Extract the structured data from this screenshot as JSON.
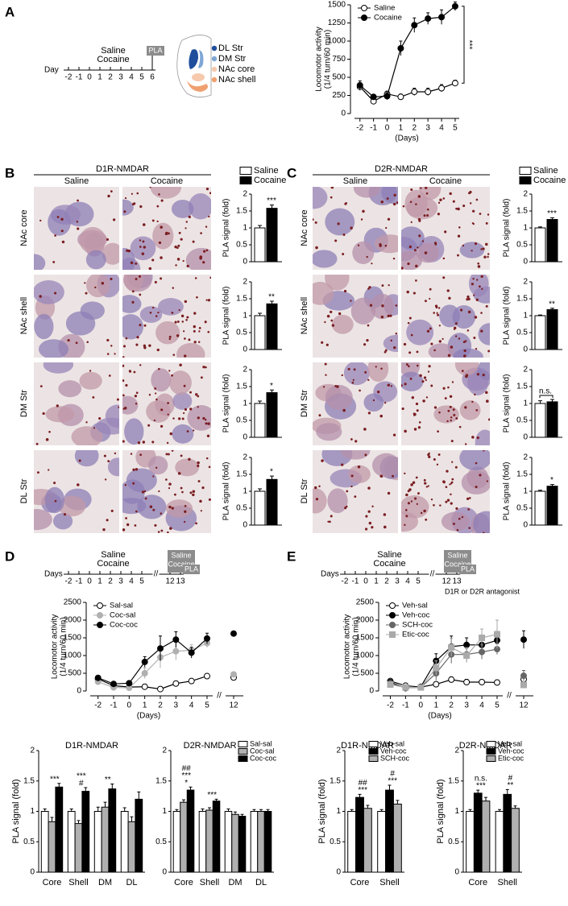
{
  "panel_labels": [
    "A",
    "B",
    "C",
    "D",
    "E"
  ],
  "timelines": [
    {
      "label": "Day",
      "ticks": [
        -2,
        -1,
        0,
        1,
        2,
        3,
        4,
        5,
        6
      ],
      "treatment": [
        "Saline",
        "Cocaine"
      ],
      "end": "PLA"
    },
    {
      "label": "Days",
      "ticks": [
        -2,
        -1,
        0,
        1,
        2,
        3,
        4,
        5,
        12,
        13
      ],
      "treatment": [
        "Saline",
        "Cocaine"
      ],
      "challenge": [
        "Saline",
        "Cocaine"
      ],
      "end": "PLA"
    },
    {
      "label": "Days",
      "ticks": [
        -2,
        -1,
        0,
        1,
        2,
        3,
        4,
        5,
        12,
        13
      ],
      "treatment": [
        "Saline",
        "Cocaine"
      ],
      "challenge": [
        "Saline",
        "Cocaine"
      ],
      "end": "PLA",
      "note": "D1R or D2R antagonist"
    }
  ],
  "brain_regions": [
    {
      "label": "DL Str",
      "color": "#1f4e9c"
    },
    {
      "label": "DM Str",
      "color": "#7fa7d6"
    },
    {
      "label": "NAc core",
      "color": "#f6c9ad"
    },
    {
      "label": "NAc shell",
      "color": "#f0a070"
    }
  ],
  "chart_data": [
    {
      "type": "line",
      "x": [
        -2,
        -1,
        0,
        1,
        2,
        3,
        4,
        5
      ],
      "xlim": [
        -2.4,
        5.3
      ],
      "xticks": [
        -2,
        -1,
        0,
        1,
        2,
        3,
        4,
        5
      ],
      "ylim": [
        0,
        1500
      ],
      "yticks": [
        0,
        250,
        500,
        750,
        1000,
        1250,
        1500
      ],
      "ylabel": [
        "Locomotor activity",
        "(1/4 turn/60 min)"
      ],
      "xlabel": "(Days)",
      "legend": "top-left",
      "annotation": "***",
      "series": [
        {
          "name": "Saline",
          "color": "#ffffff",
          "marker": "circle",
          "values": [
            370,
            170,
            270,
            230,
            300,
            300,
            350,
            420
          ],
          "errors": [
            50,
            30,
            40,
            40,
            50,
            50,
            50,
            40
          ]
        },
        {
          "name": "Cocaine",
          "color": "#000000",
          "marker": "circle",
          "values": [
            390,
            230,
            240,
            900,
            1220,
            1310,
            1330,
            1480
          ],
          "errors": [
            60,
            30,
            50,
            100,
            100,
            80,
            100,
            60
          ]
        }
      ]
    },
    {
      "type": "facet-bar",
      "title": "D1R-NMDAR",
      "categories": [
        "NAc core",
        "NAc shell",
        "DM Str",
        "DL Str"
      ],
      "ylim": [
        0,
        2
      ],
      "yticks": [
        0,
        0.5,
        1,
        1.5,
        2
      ],
      "ylabel": "PLA signal (fold)",
      "legend": "top-right",
      "annotations": [
        "***",
        "**",
        "*",
        "*"
      ],
      "series": [
        {
          "name": "Saline",
          "color": "#ffffff",
          "values": [
            1,
            1,
            1,
            1
          ],
          "errors": [
            0.07,
            0.07,
            0.07,
            0.07
          ]
        },
        {
          "name": "Cocaine",
          "color": "#000000",
          "values": [
            1.58,
            1.35,
            1.32,
            1.35
          ],
          "errors": [
            0.1,
            0.08,
            0.08,
            0.1
          ]
        }
      ]
    },
    {
      "type": "facet-bar",
      "title": "D2R-NMDAR",
      "categories": [
        "NAc core",
        "NAc shell",
        "DM Str",
        "DL Str"
      ],
      "ylim": [
        0,
        2
      ],
      "yticks": [
        0,
        0.5,
        1,
        1.5,
        2
      ],
      "ylabel": "PLA signal (fold)",
      "legend": "top-right",
      "annotations": [
        "***",
        "**",
        "n.s.",
        "*"
      ],
      "series": [
        {
          "name": "Saline",
          "color": "#ffffff",
          "values": [
            1,
            1,
            1,
            1
          ],
          "errors": [
            0.03,
            0.02,
            0.08,
            0.03
          ]
        },
        {
          "name": "Cocaine",
          "color": "#000000",
          "values": [
            1.25,
            1.18,
            1.05,
            1.15
          ],
          "errors": [
            0.05,
            0.04,
            0.07,
            0.05
          ]
        }
      ]
    },
    {
      "type": "line",
      "x": [
        -2,
        -1,
        0,
        1,
        2,
        3,
        4,
        5,
        12
      ],
      "xlim": [
        -2.5,
        12.5
      ],
      "xticks": [
        -2,
        -1,
        0,
        1,
        2,
        3,
        4,
        5,
        12
      ],
      "axis_break": true,
      "ylim": [
        0,
        2500
      ],
      "yticks": [
        0,
        500,
        1000,
        1500,
        2000,
        2500
      ],
      "ylabel": [
        "Locomotor activity",
        "(1/4 turn/60 min)"
      ],
      "xlabel": "(Days)",
      "legend": "top-left",
      "series": [
        {
          "name": "Sal-sal",
          "color": "#ffffff",
          "marker": "circle",
          "values": [
            340,
            150,
            110,
            120,
            55,
            210,
            280,
            420,
            380
          ],
          "errors": [
            60,
            40,
            20,
            20,
            15,
            60,
            70,
            70,
            60
          ]
        },
        {
          "name": "Coc-sal",
          "color": "#b0b0b0",
          "marker": "circle",
          "values": [
            260,
            100,
            90,
            500,
            950,
            1120,
            1150,
            1350,
            470
          ],
          "errors": [
            50,
            30,
            30,
            150,
            300,
            250,
            150,
            120,
            60
          ]
        },
        {
          "name": "Coc-coc",
          "color": "#000000",
          "marker": "circle",
          "values": [
            370,
            200,
            220,
            820,
            1200,
            1450,
            1080,
            1480,
            1620
          ],
          "errors": [
            60,
            40,
            40,
            150,
            350,
            220,
            150,
            150,
            60
          ]
        }
      ]
    },
    {
      "type": "group-bar",
      "title": "D1R-NMDAR",
      "categories": [
        "Core",
        "Shell",
        "DM",
        "DL"
      ],
      "ylim": [
        0,
        2
      ],
      "yticks": [
        0,
        0.5,
        1,
        1.5,
        2
      ],
      "ylabel": "PLA signal (fold)",
      "annotations": [
        [
          "***"
        ],
        [
          "#",
          "***"
        ],
        [
          "**"
        ],
        []
      ],
      "series": [
        {
          "color": "#ffffff",
          "values": [
            1,
            1,
            1,
            1
          ],
          "errors": [
            0.04,
            0.04,
            0.07,
            0.06
          ]
        },
        {
          "color": "#b0b0b0",
          "values": [
            0.83,
            0.8,
            1.07,
            0.83
          ],
          "errors": [
            0.07,
            0.05,
            0.08,
            0.08
          ]
        },
        {
          "color": "#000000",
          "values": [
            1.4,
            1.33,
            1.37,
            1.2
          ],
          "errors": [
            0.06,
            0.06,
            0.08,
            0.12
          ]
        }
      ]
    },
    {
      "type": "group-bar",
      "title": "D2R-NMDAR",
      "categories": [
        "Core",
        "Shell",
        "DM",
        "DL"
      ],
      "ylim": [
        0,
        2
      ],
      "yticks": [
        0,
        0.5,
        1,
        1.5,
        2
      ],
      "legend": "top-right",
      "annotations": [
        [
          "*",
          "***",
          "##"
        ],
        [
          "***"
        ],
        [],
        []
      ],
      "series": [
        {
          "name": "Sal-sal",
          "color": "#ffffff",
          "values": [
            1,
            1,
            1,
            1
          ],
          "errors": [
            0.03,
            0.04,
            0.04,
            0.03
          ]
        },
        {
          "name": "Coc-sal",
          "color": "#b0b0b0",
          "values": [
            1.15,
            1.02,
            0.95,
            1.0
          ],
          "errors": [
            0.04,
            0.04,
            0.04,
            0.03
          ]
        },
        {
          "name": "Coc-coc",
          "color": "#000000",
          "values": [
            1.35,
            1.17,
            0.92,
            1.0
          ],
          "errors": [
            0.05,
            0.03,
            0.03,
            0.03
          ]
        }
      ]
    },
    {
      "type": "line",
      "x": [
        -2,
        -1,
        0,
        1,
        2,
        3,
        4,
        5,
        12
      ],
      "xlim": [
        -2.5,
        12.5
      ],
      "xticks": [
        -2,
        -1,
        0,
        1,
        2,
        3,
        4,
        5,
        12
      ],
      "axis_break": true,
      "ylim": [
        0,
        2500
      ],
      "yticks": [
        0,
        500,
        1000,
        1500,
        2000,
        2500
      ],
      "ylabel": [
        "Locomotor activity",
        "(1/4 turn/60 min)"
      ],
      "xlabel": "(Days)",
      "legend": "top-left",
      "series": [
        {
          "name": "Veh-sal",
          "color": "#ffffff",
          "marker": "circle",
          "values": [
            280,
            150,
            110,
            190,
            320,
            250,
            250,
            240,
            330
          ],
          "errors": [
            60,
            40,
            30,
            50,
            80,
            80,
            70,
            70,
            80
          ]
        },
        {
          "name": "Veh-coc",
          "color": "#000000",
          "marker": "circle",
          "values": [
            250,
            80,
            120,
            850,
            1250,
            1300,
            1300,
            1430,
            1450
          ],
          "errors": [
            50,
            30,
            30,
            200,
            300,
            200,
            200,
            250,
            250
          ]
        },
        {
          "name": "SCH-coc",
          "color": "#666666",
          "marker": "circle",
          "values": [
            220,
            90,
            100,
            500,
            1030,
            1030,
            1100,
            1180,
            430
          ],
          "errors": [
            50,
            30,
            30,
            200,
            250,
            200,
            200,
            150,
            150
          ]
        },
        {
          "name": "Etic-coc",
          "color": "#aaaaaa",
          "marker": "square",
          "values": [
            180,
            100,
            100,
            650,
            1230,
            1000,
            1500,
            1600,
            170
          ],
          "errors": [
            40,
            30,
            30,
            200,
            250,
            200,
            250,
            400,
            60
          ]
        }
      ]
    },
    {
      "type": "group-bar",
      "title": "D1R-NMDAR",
      "categories": [
        "Core",
        "Shell"
      ],
      "ylim": [
        0,
        2
      ],
      "yticks": [
        0,
        0.5,
        1,
        1.5,
        2
      ],
      "ylabel": "PLA signal (fold)",
      "legend": "top-right",
      "annotations": [
        [
          "***",
          "##"
        ],
        [
          "***",
          "#"
        ]
      ],
      "series": [
        {
          "name": "Veh-sal",
          "color": "#ffffff",
          "values": [
            1,
            1
          ],
          "errors": [
            0.03,
            0.03
          ]
        },
        {
          "name": "Veh-coc",
          "color": "#000000",
          "values": [
            1.23,
            1.35
          ],
          "errors": [
            0.05,
            0.08
          ]
        },
        {
          "name": "SCH-coc",
          "color": "#b0b0b0",
          "values": [
            1.05,
            1.12
          ],
          "errors": [
            0.05,
            0.06
          ]
        }
      ]
    },
    {
      "type": "group-bar",
      "title": "D2R-NMDAR",
      "categories": [
        "Core",
        "Shell"
      ],
      "ylim": [
        0,
        2
      ],
      "yticks": [
        0,
        0.5,
        1,
        1.5,
        2
      ],
      "ylabel": "PLA signal (fold)",
      "legend": "top-right",
      "annotations": [
        [
          "***",
          "n.s."
        ],
        [
          "**",
          "#"
        ]
      ],
      "series": [
        {
          "name": "Veh-sal",
          "color": "#ffffff",
          "values": [
            1,
            1
          ],
          "errors": [
            0.03,
            0.03
          ]
        },
        {
          "name": "Veh-coc",
          "color": "#000000",
          "values": [
            1.3,
            1.28
          ],
          "errors": [
            0.05,
            0.08
          ]
        },
        {
          "name": "Etic-coc",
          "color": "#b0b0b0",
          "values": [
            1.17,
            1.05
          ],
          "errors": [
            0.06,
            0.04
          ]
        }
      ]
    }
  ]
}
